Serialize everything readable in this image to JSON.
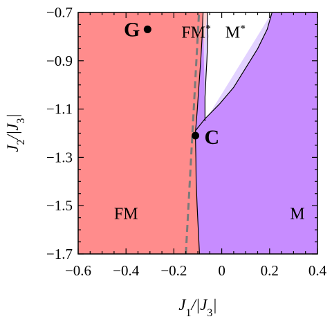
{
  "chart_data": {
    "type": "phase_diagram",
    "xlabel": "J_1/|J_3|",
    "ylabel": "J_2/|J_3|",
    "xlim": [
      -0.6,
      0.4
    ],
    "ylim": [
      -1.7,
      -0.7
    ],
    "x_ticks": [
      -0.6,
      -0.4,
      -0.2,
      0,
      0.2,
      0.4
    ],
    "x_tick_labels": [
      "−0.6",
      "−0.4",
      "−0.2",
      "0",
      "0.2",
      "0.4"
    ],
    "y_ticks": [
      -0.7,
      -0.9,
      -1.1,
      -1.3,
      -1.5,
      -1.7
    ],
    "y_tick_labels": [
      "−0.7",
      "−0.9",
      "−1.1",
      "−1.3",
      "−1.5",
      "−1.7"
    ],
    "regions": [
      {
        "label": "FM",
        "superscript": "",
        "color": "#ff8c8c",
        "label_at": [
          -0.45,
          -1.555
        ]
      },
      {
        "label": "FM",
        "superscript": "*",
        "color": "#ffd4d4",
        "label_at": [
          -0.045,
          -0.805
        ]
      },
      {
        "label": "M",
        "superscript": "*",
        "color": "#e2d2ff",
        "label_at": [
          0.015,
          -0.805
        ]
      },
      {
        "label": "M",
        "superscript": "",
        "color": "#c78cff",
        "label_at": [
          0.285,
          -1.555
        ]
      }
    ],
    "boundaries": {
      "fm_right": {
        "x": [
          -0.093,
          -0.098,
          -0.103,
          -0.107,
          -0.108,
          -0.11,
          -0.102,
          -0.095,
          -0.088,
          -0.082,
          -0.078
        ],
        "y": [
          -1.7,
          -1.6,
          -1.5,
          -1.4,
          -1.3,
          -1.2,
          -1.1,
          -1.0,
          -0.9,
          -0.8,
          -0.7
        ]
      },
      "fm_star_right": {
        "x": [
          -0.06,
          -0.058,
          -0.062,
          -0.065,
          -0.07,
          -0.07
        ],
        "y": [
          -0.7,
          -0.8,
          -0.9,
          -0.95,
          -1.05,
          -1.15
        ]
      },
      "m_star_lower": {
        "x": [
          -0.11,
          -0.07,
          -0.01,
          0.05,
          0.1,
          0.15,
          0.19,
          0.21
        ],
        "y": [
          -1.19,
          -1.14,
          -1.08,
          -1.01,
          -0.93,
          -0.85,
          -0.77,
          -0.7
        ]
      }
    },
    "dashed_line": {
      "color": "#7a7a7a",
      "x": [
        -0.15,
        -0.095
      ],
      "y": [
        -1.7,
        -0.7
      ]
    },
    "points": [
      {
        "label": "G",
        "x": -0.31,
        "y": -0.77
      },
      {
        "label": "C",
        "x": -0.11,
        "y": -1.21
      }
    ],
    "grid": false,
    "legend": "none"
  }
}
